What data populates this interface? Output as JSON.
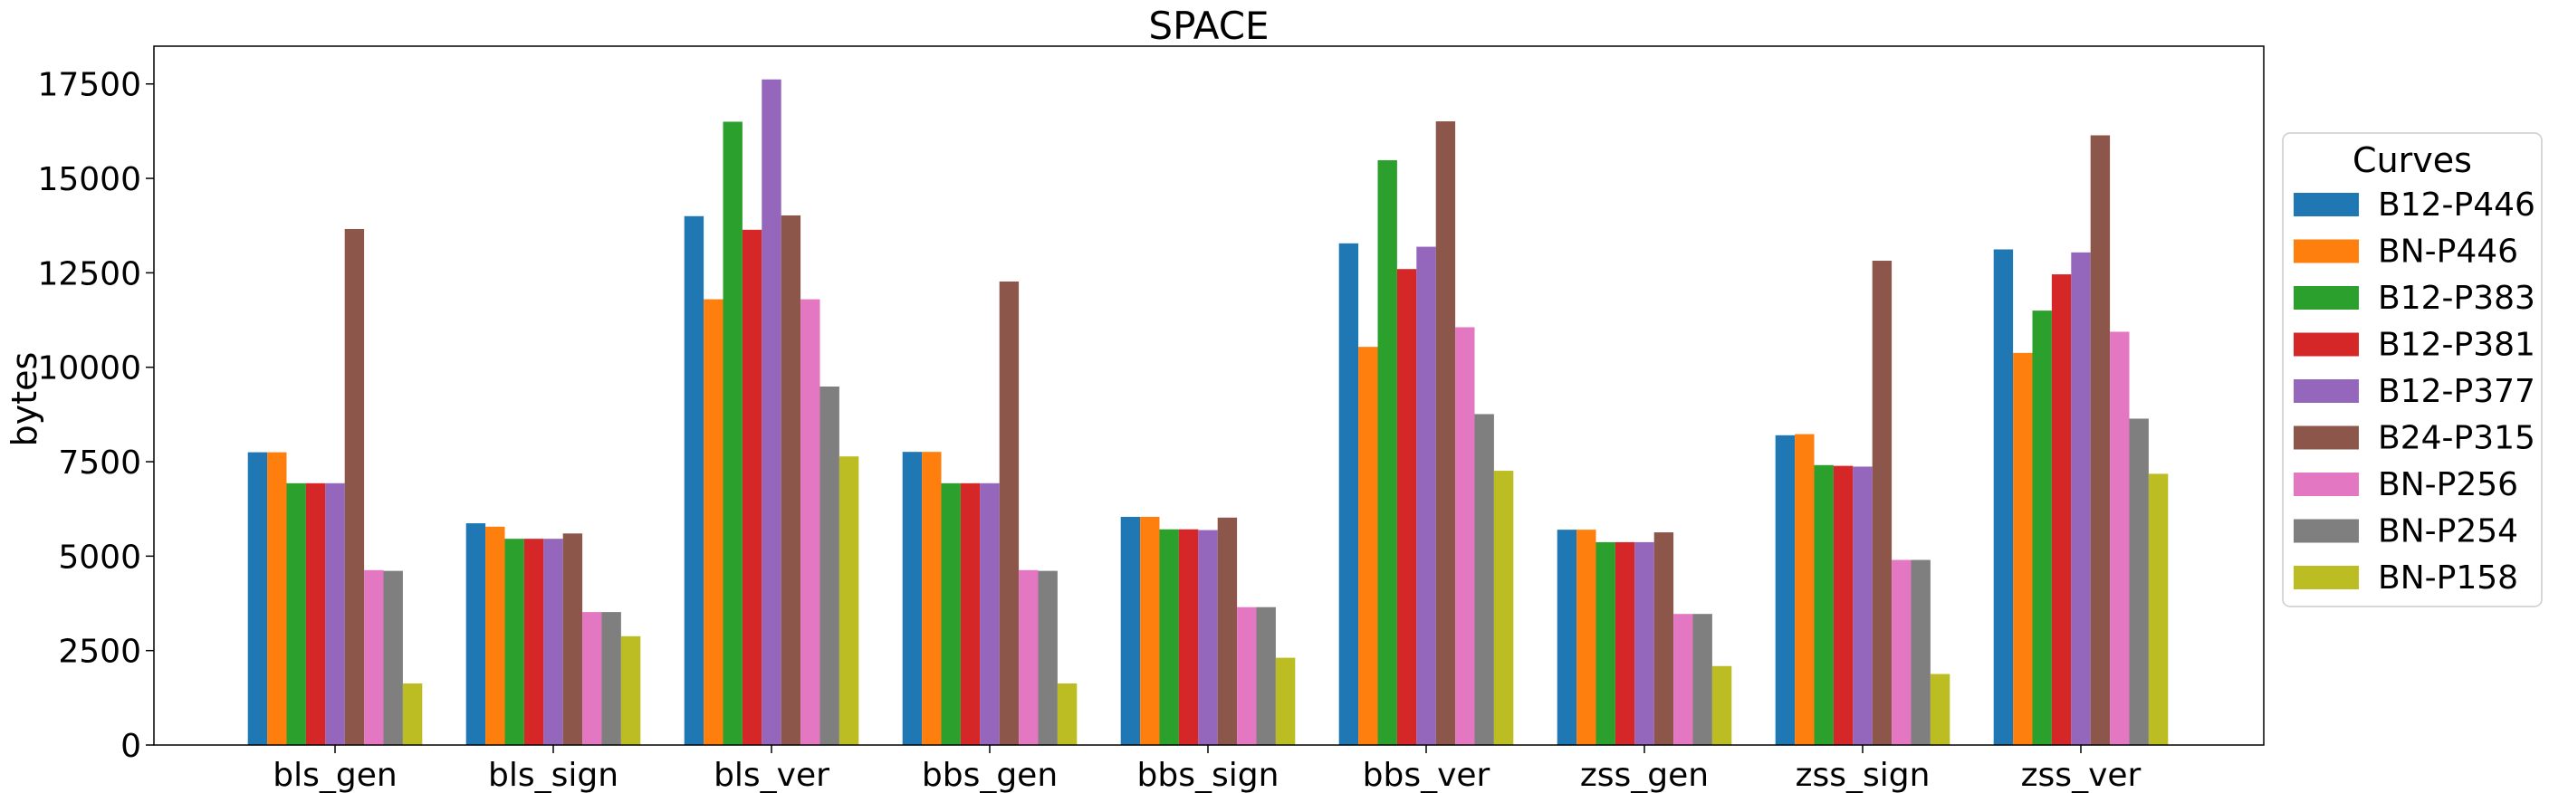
{
  "chart_data": {
    "type": "bar",
    "title": "SPACE",
    "xlabel": "",
    "ylabel": "bytes",
    "ylim": [
      0,
      18500
    ],
    "yticks": [
      0,
      2500,
      5000,
      7500,
      10000,
      12500,
      15000,
      17500
    ],
    "grid": false,
    "legend_title": "Curves",
    "legend_placement": "right outside",
    "categories": [
      "bls_gen",
      "bls_sign",
      "bls_ver",
      "bbs_gen",
      "bbs_sign",
      "bbs_ver",
      "zss_gen",
      "zss_sign",
      "zss_ver"
    ],
    "series": [
      {
        "name": "B12-P446",
        "color": "#1f77b4",
        "values": [
          7750,
          5870,
          14000,
          7760,
          6040,
          13280,
          5700,
          8200,
          13120
        ]
      },
      {
        "name": "BN-P446",
        "color": "#ff7f0e",
        "values": [
          7750,
          5780,
          11800,
          7760,
          6040,
          10540,
          5700,
          8230,
          10380
        ]
      },
      {
        "name": "B12-P383",
        "color": "#2ca02c",
        "values": [
          6930,
          5460,
          16500,
          6930,
          5710,
          15480,
          5370,
          7410,
          11500
        ]
      },
      {
        "name": "B12-P381",
        "color": "#d62728",
        "values": [
          6930,
          5460,
          13640,
          6930,
          5710,
          12600,
          5370,
          7390,
          12460
        ]
      },
      {
        "name": "B12-P377",
        "color": "#9467bd",
        "values": [
          6930,
          5460,
          17620,
          6930,
          5690,
          13190,
          5370,
          7370,
          13040
        ]
      },
      {
        "name": "B24-P315",
        "color": "#8c564b",
        "values": [
          13660,
          5600,
          14020,
          12270,
          6020,
          16510,
          5630,
          12820,
          16140
        ]
      },
      {
        "name": "BN-P256",
        "color": "#e377c2",
        "values": [
          4630,
          3520,
          11800,
          4630,
          3650,
          11060,
          3470,
          4900,
          10940
        ]
      },
      {
        "name": "BN-P254",
        "color": "#7f7f7f",
        "values": [
          4610,
          3520,
          9490,
          4610,
          3650,
          8760,
          3470,
          4900,
          8640
        ]
      },
      {
        "name": "BN-P158",
        "color": "#bcbd22",
        "values": [
          1630,
          2880,
          7640,
          1630,
          2310,
          7260,
          2090,
          1880,
          7180
        ]
      }
    ]
  }
}
